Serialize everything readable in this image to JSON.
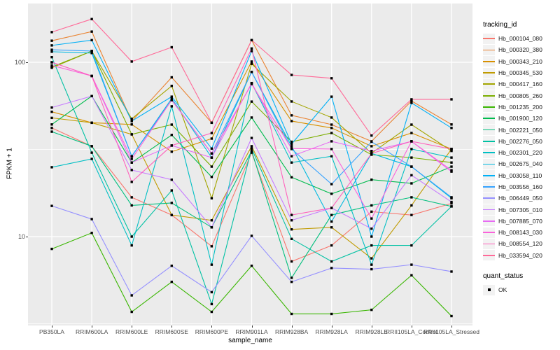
{
  "chart_data": {
    "type": "line",
    "title": "",
    "xlabel": "sample_name",
    "ylabel": "FPKM + 1",
    "y_scale": "log10",
    "ylim": [
      3.0,
      220
    ],
    "y_ticks": [
      100,
      10
    ],
    "y_minor_ticks": [
      31.62,
      3.162
    ],
    "grid": true,
    "legend_position": "right",
    "panel_bg": "#EBEBEB",
    "grid_color": "#FFFFFF",
    "marker": {
      "shape": "square",
      "color": "#000000",
      "legend_label": "OK"
    },
    "legend": {
      "color_title": "tracking_id",
      "shape_title": "quant_status",
      "shape_items": [
        {
          "label": "OK",
          "marker": "black-square-icon"
        }
      ]
    },
    "categories": [
      "PB350LA",
      "RRIM600LA",
      "RRIM600LE",
      "RRIM600SE",
      "RRIM600PE",
      "RRIM901LA",
      "RRIM928BA",
      "RRIM928LA",
      "RRIM928LE",
      "RRII105LA_Control",
      "RRII105LA_Stressed"
    ],
    "series": [
      {
        "name": "Hb_000104_080",
        "color": "#F8766D",
        "values": [
          42,
          33,
          16.8,
          13.3,
          8.8,
          30.3,
          7.2,
          8.9,
          13.9,
          13.3,
          15.5
        ]
      },
      {
        "name": "Hb_000320_380",
        "color": "#EA8331",
        "values": [
          133,
          150,
          46,
          82,
          45,
          134,
          49.6,
          43.9,
          35.2,
          60,
          44
        ]
      },
      {
        "name": "Hb_000343_210",
        "color": "#D89000",
        "values": [
          52,
          45,
          44,
          30.7,
          36.5,
          101,
          46,
          42,
          33,
          39.3,
          31.8
        ]
      },
      {
        "name": "Hb_000345_530",
        "color": "#C09B00",
        "values": [
          48,
          45,
          38.6,
          13.3,
          12.4,
          33,
          11,
          11.3,
          7.5,
          15.1,
          31.8
        ]
      },
      {
        "name": "Hb_000417_160",
        "color": "#A3A500",
        "values": [
          93,
          116,
          47.4,
          73.2,
          16.6,
          98,
          59.6,
          48.2,
          30.1,
          43.9,
          31
        ]
      },
      {
        "name": "Hb_000805_260",
        "color": "#7CAE00",
        "values": [
          94,
          116,
          38.6,
          43.9,
          25.2,
          59.5,
          35,
          39.3,
          29.5,
          28.4,
          26.6
        ]
      },
      {
        "name": "Hb_001235_200",
        "color": "#39B600",
        "values": [
          8.5,
          10.5,
          3.7,
          5.5,
          3.7,
          6.8,
          3.6,
          3.6,
          3.8,
          6.0,
          3.5
        ]
      },
      {
        "name": "Hb_001900_120",
        "color": "#00BB4E",
        "values": [
          44,
          64,
          26.6,
          38.3,
          22,
          48.2,
          21.9,
          17.6,
          21.2,
          20.2,
          25.2
        ]
      },
      {
        "name": "Hb_002221_050",
        "color": "#00BF7D",
        "values": [
          40,
          33,
          15.1,
          15.6,
          11.3,
          31,
          5.8,
          13.3,
          15.1,
          16.8,
          14.9
        ]
      },
      {
        "name": "Hb_002276_050",
        "color": "#00C1A3",
        "values": [
          107,
          30.3,
          10,
          18.4,
          4.1,
          32,
          9.7,
          7.2,
          8.9,
          8.9,
          14.9
        ]
      },
      {
        "name": "Hb_002301_220",
        "color": "#00BFC4",
        "values": [
          25,
          27.9,
          8.9,
          55.9,
          6.9,
          76,
          26.6,
          28.9,
          6.9,
          31.8,
          28.4
        ]
      },
      {
        "name": "Hb_002675_040",
        "color": "#00BAE0",
        "values": [
          115,
          113,
          28.9,
          62,
          28.4,
          88,
          33,
          12.2,
          30,
          25.2,
          16.6
        ]
      },
      {
        "name": "Hb_003058_110",
        "color": "#00B0F6",
        "values": [
          125,
          134,
          46,
          63.5,
          32,
          116,
          34,
          63.5,
          10,
          58.5,
          42
        ]
      },
      {
        "name": "Hb_003556_160",
        "color": "#35A2FF",
        "values": [
          118,
          116,
          28.9,
          60.7,
          30,
          88,
          31.8,
          20,
          35,
          25.2,
          16.8
        ]
      },
      {
        "name": "Hb_006449_050",
        "color": "#9590FF",
        "values": [
          15,
          12.6,
          4.6,
          6.8,
          4.8,
          10.1,
          5.5,
          6.6,
          6.5,
          6.9,
          6.3
        ]
      },
      {
        "name": "Hb_007305_010",
        "color": "#C77CFF",
        "values": [
          55,
          64,
          24.1,
          21.2,
          11.3,
          36.8,
          12.4,
          14.6,
          11.1,
          22.5,
          15.8
        ]
      },
      {
        "name": "Hb_007885_070",
        "color": "#E76BF3",
        "values": [
          100,
          83.5,
          26.6,
          33.3,
          28.4,
          76,
          28.9,
          35.2,
          31,
          35.2,
          23.6
        ]
      },
      {
        "name": "Hb_008143_030",
        "color": "#FA62DB",
        "values": [
          96,
          83.5,
          27.9,
          60.7,
          30,
          75,
          32,
          31.8,
          12.7,
          35.2,
          24
        ]
      },
      {
        "name": "Hb_008554_120",
        "color": "#FF62BC",
        "values": [
          100,
          83.5,
          20.6,
          33.3,
          39.3,
          120,
          13.3,
          14.6,
          30,
          35.2,
          31.8
        ]
      },
      {
        "name": "Hb_033594_020",
        "color": "#FF6A98",
        "values": [
          149,
          177,
          101,
          122,
          45,
          134,
          84.6,
          81,
          38,
          61.3,
          61.3
        ]
      }
    ]
  }
}
